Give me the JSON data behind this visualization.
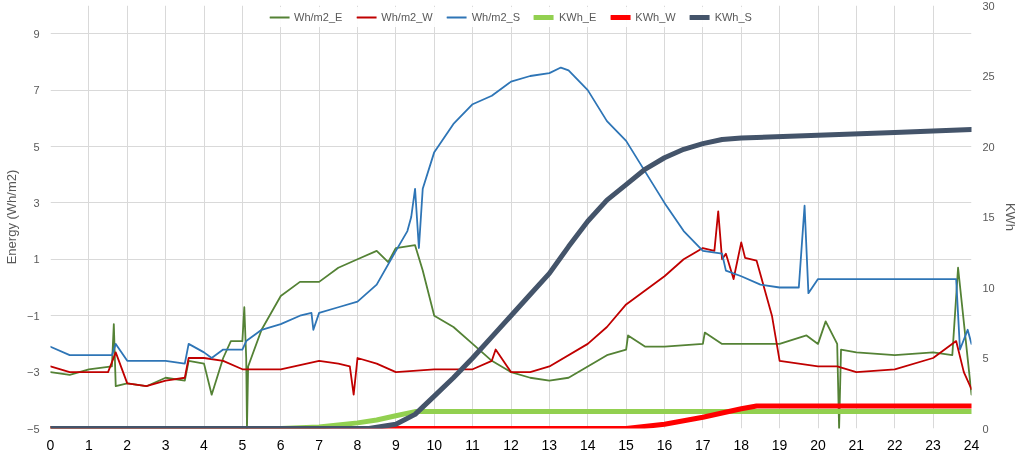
{
  "chart_data": {
    "type": "line",
    "ylabel": "Energy (Wh/m2)",
    "y2label": "KWh",
    "xlim": [
      0,
      24
    ],
    "xticks": [
      0,
      1,
      2,
      3,
      4,
      5,
      6,
      7,
      8,
      9,
      10,
      11,
      12,
      13,
      14,
      15,
      16,
      17,
      18,
      19,
      20,
      21,
      22,
      23,
      24
    ],
    "ylim": [
      -5,
      10
    ],
    "yticks": [
      -5,
      -3,
      -1,
      1,
      3,
      5,
      7,
      9
    ],
    "y2lim": [
      0,
      30
    ],
    "y2ticks": [
      0,
      5,
      10,
      15,
      20,
      25,
      30
    ],
    "grid": true,
    "legend": "top",
    "line_style": "solid",
    "series": [
      {
        "name": "Wh/m2_E",
        "color": "#548235",
        "x": [
          0,
          0.5,
          1,
          1.6,
          1.65,
          1.7,
          2,
          2.5,
          3,
          3.5,
          3.6,
          4,
          4.2,
          4.5,
          4.7,
          5,
          5.05,
          5.1,
          5.12,
          5.15,
          5.5,
          6,
          6.5,
          7,
          7.5,
          8,
          8.5,
          8.8,
          9,
          9.5,
          9.7,
          10,
          10.5,
          11,
          11.5,
          12,
          12.5,
          13,
          13.5,
          14,
          14.5,
          15,
          15.05,
          15.5,
          16,
          17,
          17.05,
          17.5,
          18,
          19,
          19.7,
          20,
          20.2,
          20.5,
          20.55,
          20.6,
          21,
          22,
          23,
          23.5,
          23.65,
          24
        ],
        "values": [
          -3.0,
          -3.1,
          -2.9,
          -2.8,
          -1.3,
          -3.5,
          -3.4,
          -3.5,
          -3.2,
          -3.3,
          -2.6,
          -2.7,
          -3.8,
          -2.5,
          -1.9,
          -1.9,
          -0.7,
          -2.5,
          -5,
          -2.8,
          -1.5,
          -0.3,
          0.2,
          0.2,
          0.7,
          1.0,
          1.3,
          0.9,
          1.4,
          1.5,
          0.6,
          -1.0,
          -1.4,
          -2.0,
          -2.6,
          -3.0,
          -3.2,
          -3.3,
          -3.2,
          -2.8,
          -2.4,
          -2.2,
          -1.7,
          -2.1,
          -2.1,
          -2.0,
          -1.6,
          -2.0,
          -2.0,
          -2.0,
          -1.7,
          -2.0,
          -1.2,
          -2.0,
          -5,
          -2.2,
          -2.3,
          -2.4,
          -2.3,
          -2.4,
          0.7,
          -3.8
        ]
      },
      {
        "name": "Wh/m2_W",
        "color": "#c00000",
        "x": [
          0,
          0.5,
          1,
          1.5,
          1.7,
          2,
          2.5,
          3,
          3.5,
          3.6,
          4,
          4.5,
          5,
          6,
          7,
          7.5,
          7.8,
          7.9,
          8,
          8.5,
          9,
          10,
          11,
          11.5,
          11.6,
          12,
          12.5,
          13,
          14,
          14.5,
          15,
          16,
          16.5,
          17,
          17.3,
          17.4,
          17.5,
          17.6,
          17.8,
          18,
          18.1,
          18.4,
          18.8,
          19,
          20,
          20.5,
          21,
          22,
          23,
          23.6,
          23.8,
          24
        ],
        "values": [
          -2.8,
          -3.0,
          -3.0,
          -3.0,
          -2.3,
          -3.4,
          -3.5,
          -3.3,
          -3.2,
          -2.5,
          -2.5,
          -2.6,
          -2.9,
          -2.9,
          -2.6,
          -2.7,
          -2.8,
          -3.8,
          -2.5,
          -2.7,
          -3.0,
          -2.9,
          -2.9,
          -2.6,
          -2.2,
          -3.0,
          -3.0,
          -2.8,
          -2.0,
          -1.4,
          -0.6,
          0.4,
          1.0,
          1.4,
          1.3,
          2.7,
          1.0,
          1.2,
          0.3,
          1.6,
          1.05,
          0.95,
          -1.0,
          -2.6,
          -2.8,
          -2.8,
          -3.0,
          -2.9,
          -2.5,
          -1.9,
          -3.0,
          -3.6
        ]
      },
      {
        "name": "Wh/m2_S",
        "color": "#2e75b6",
        "x": [
          0,
          0.5,
          1,
          1.6,
          1.7,
          2,
          3,
          3.5,
          3.6,
          4,
          4.2,
          4.5,
          5,
          5.1,
          5.5,
          6,
          6.5,
          6.8,
          6.85,
          7,
          7.5,
          8,
          8.5,
          9,
          9.3,
          9.4,
          9.5,
          9.6,
          9.7,
          10,
          10.5,
          11,
          11.5,
          12,
          12.5,
          13,
          13.3,
          13.5,
          14,
          14.5,
          15,
          15.5,
          16,
          16.5,
          17,
          17.5,
          17.6,
          18,
          18.5,
          19,
          19.5,
          19.65,
          19.75,
          20,
          21,
          22,
          23,
          23.6,
          23.7,
          23.9,
          24
        ],
        "values": [
          -2.1,
          -2.4,
          -2.4,
          -2.4,
          -2.0,
          -2.6,
          -2.6,
          -2.7,
          -2.0,
          -2.3,
          -2.5,
          -2.2,
          -2.2,
          -1.9,
          -1.5,
          -1.3,
          -1.0,
          -0.9,
          -1.5,
          -0.9,
          -0.7,
          -0.5,
          0.1,
          1.3,
          2.0,
          2.5,
          3.5,
          1.4,
          3.5,
          4.8,
          5.8,
          6.5,
          6.8,
          7.3,
          7.5,
          7.6,
          7.8,
          7.7,
          7.0,
          5.9,
          5.2,
          4.1,
          3.0,
          2.0,
          1.3,
          1.2,
          0.6,
          0.4,
          0.1,
          0.0,
          0.0,
          2.9,
          -0.2,
          0.3,
          0.3,
          0.3,
          0.3,
          0.3,
          -2.2,
          -1.5,
          -2.0
        ]
      },
      {
        "name": "KWh_E",
        "color": "#92d050",
        "axis": "y2",
        "x": [
          0,
          6,
          7,
          8,
          8.5,
          9,
          9.5,
          24
        ],
        "values": [
          0,
          0,
          0.1,
          0.4,
          0.6,
          0.9,
          1.2,
          1.2
        ]
      },
      {
        "name": "KWh_W",
        "color": "#ff0000",
        "axis": "y2",
        "x": [
          0,
          15,
          16,
          17,
          18,
          18.4,
          24
        ],
        "values": [
          0,
          0,
          0.3,
          0.8,
          1.4,
          1.6,
          1.6
        ]
      },
      {
        "name": "KWh_S",
        "color": "#44546a",
        "axis": "y2",
        "x": [
          0,
          8.3,
          9,
          9.5,
          10,
          10.5,
          11,
          11.5,
          12,
          12.5,
          13,
          13.5,
          14,
          14.5,
          15,
          15.5,
          16,
          16.5,
          17,
          17.5,
          18,
          20,
          22,
          24
        ],
        "values": [
          0,
          0,
          0.3,
          1.0,
          2.3,
          3.6,
          5.0,
          6.5,
          8.0,
          9.5,
          11.0,
          12.9,
          14.7,
          16.2,
          17.3,
          18.4,
          19.2,
          19.8,
          20.2,
          20.5,
          20.6,
          20.8,
          21.0,
          21.2
        ]
      }
    ]
  }
}
